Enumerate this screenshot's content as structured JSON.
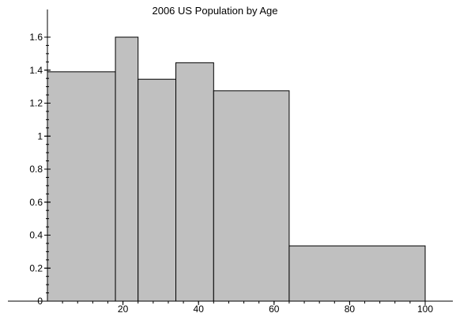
{
  "chart_data": {
    "type": "bar",
    "title": "2006 US Population by Age",
    "xlabel": "",
    "ylabel": "",
    "bar_color": "#c0c0c0",
    "xlim": [
      0,
      104
    ],
    "ylim": [
      0,
      1.65
    ],
    "bars": [
      {
        "x0": 0,
        "x1": 18,
        "value": 1.39
      },
      {
        "x0": 18,
        "x1": 24,
        "value": 1.6
      },
      {
        "x0": 24,
        "x1": 34,
        "value": 1.345
      },
      {
        "x0": 34,
        "x1": 44,
        "value": 1.445
      },
      {
        "x0": 44,
        "x1": 64,
        "value": 1.275
      },
      {
        "x0": 64,
        "x1": 100,
        "value": 0.335
      }
    ],
    "x_ticks": [
      {
        "value": 20,
        "label": "20"
      },
      {
        "value": 40,
        "label": "40"
      },
      {
        "value": 60,
        "label": "60"
      },
      {
        "value": 80,
        "label": "80"
      },
      {
        "value": 100,
        "label": "100"
      }
    ],
    "y_ticks": [
      {
        "value": 0,
        "label": "0"
      },
      {
        "value": 0.2,
        "label": "0.2"
      },
      {
        "value": 0.4,
        "label": "0.4"
      },
      {
        "value": 0.6,
        "label": "0.6"
      },
      {
        "value": 0.8,
        "label": "0.8"
      },
      {
        "value": 1.0,
        "label": "1"
      },
      {
        "value": 1.2,
        "label": "1.2"
      },
      {
        "value": 1.4,
        "label": "1.4"
      },
      {
        "value": 1.6,
        "label": "1.6"
      }
    ],
    "grid": false,
    "legend": "none"
  }
}
